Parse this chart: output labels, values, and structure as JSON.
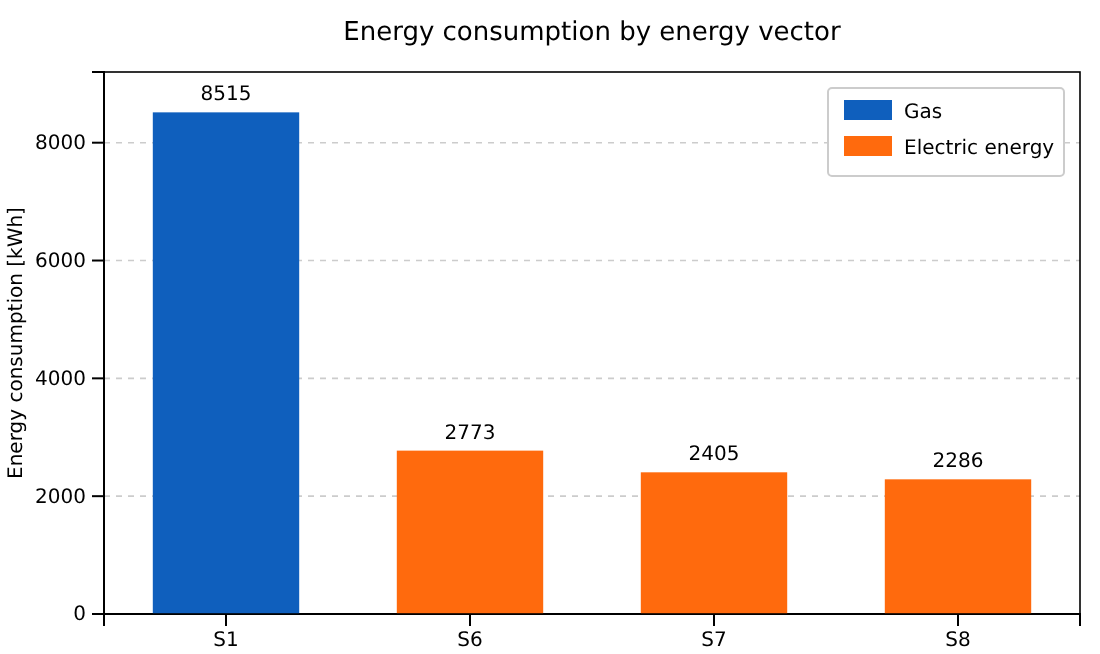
{
  "chart_data": {
    "type": "bar",
    "title": "Energy consumption by energy vector",
    "ylabel": "Energy consumption [kWh]",
    "categories": [
      "S1",
      "S6",
      "S7",
      "S8"
    ],
    "series": [
      {
        "name": "Gas",
        "color": "#0f5fbd",
        "values": [
          8515,
          null,
          null,
          null
        ]
      },
      {
        "name": "Electric energy",
        "color": "#ff6a0d",
        "values": [
          null,
          2773,
          2405,
          2286
        ]
      }
    ],
    "ylim": [
      0,
      9200
    ],
    "yticks": [
      0,
      2000,
      4000,
      6000,
      8000
    ],
    "grid": "y",
    "legend": "top right",
    "data_labels": true
  }
}
